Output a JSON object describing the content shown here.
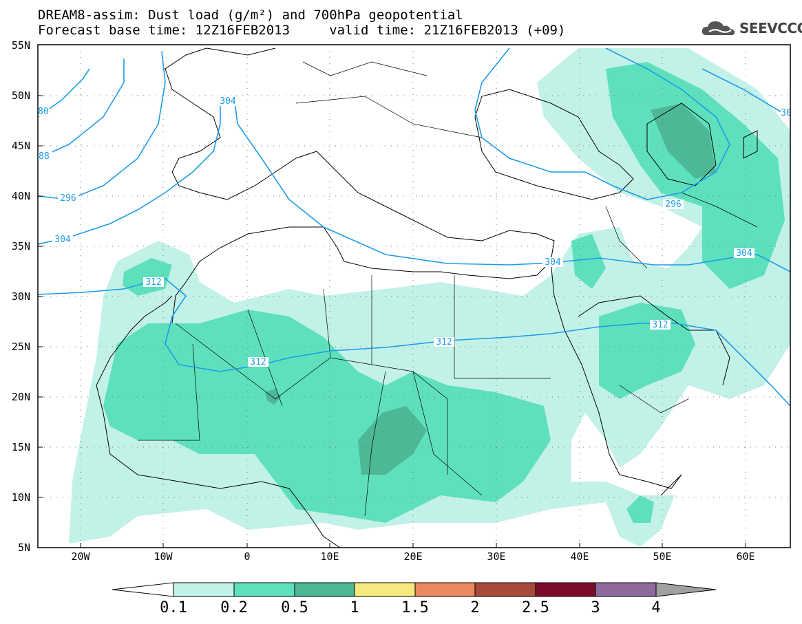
{
  "header": {
    "title_line1": "DREAM8-assim: Dust load (g/m²) and 700hPa geopotential",
    "title_line2": "Forecast base time: 12Z16FEB2013     valid time: 21Z16FEB2013 (+09)"
  },
  "logo": {
    "text": "SEEVCCC",
    "icon": "cloud-logo-icon"
  },
  "map": {
    "lat_labels": [
      "55N",
      "50N",
      "45N",
      "40N",
      "35N",
      "30N",
      "25N",
      "20N",
      "15N",
      "10N",
      "5N"
    ],
    "lon_labels": [
      "20W",
      "10W",
      "0",
      "10E",
      "20E",
      "30E",
      "40E",
      "50E",
      "60E"
    ],
    "contour_labels": [
      "80",
      "88",
      "296",
      "304",
      "312",
      "304",
      "312",
      "312",
      "304",
      "296",
      "304",
      "312",
      "30"
    ],
    "colors": {
      "land_line": "#000000",
      "contour": "#1e9be9",
      "grid_dots": "#555555"
    }
  },
  "colorbar": {
    "labels": [
      "0.1",
      "0.2",
      "0.5",
      "1",
      "1.5",
      "2",
      "2.5",
      "3",
      "4"
    ],
    "colors": [
      "#ffffff",
      "#c2f1e8",
      "#5ee0bc",
      "#4db896",
      "#f5ea80",
      "#e98a60",
      "#a84a3c",
      "#7c0c2c",
      "#8e6a9e",
      "#a0a0a0"
    ]
  }
}
